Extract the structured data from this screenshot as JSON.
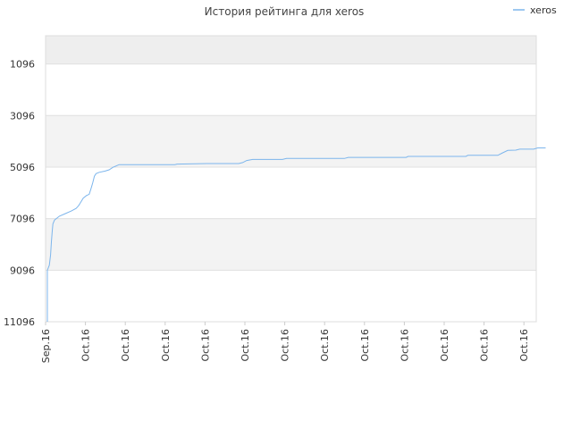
{
  "chart_data": {
    "type": "line",
    "title": "История рейтинга для xeros",
    "xlabel": "",
    "ylabel": "",
    "y_inverted": true,
    "ylim": [
      11096,
      0
    ],
    "y_ticks": [
      1096,
      3096,
      5096,
      7096,
      9096,
      11096
    ],
    "x_ticks": [
      "Sep.16",
      "Oct.16",
      "Oct.16",
      "Oct.16",
      "Oct.16",
      "Oct.16",
      "Oct.16",
      "Oct.16",
      "Oct.16",
      "Oct.16",
      "Oct.16",
      "Oct.16",
      "Oct.16"
    ],
    "grid": true,
    "legend": "top-right",
    "series": [
      {
        "name": "xeros",
        "color": "#7cb5ec",
        "points": [
          [
            0.0,
            11096
          ],
          [
            0.0,
            9096
          ],
          [
            0.05,
            8900
          ],
          [
            0.08,
            8500
          ],
          [
            0.1,
            8000
          ],
          [
            0.12,
            7600
          ],
          [
            0.14,
            7300
          ],
          [
            0.18,
            7150
          ],
          [
            0.3,
            7000
          ],
          [
            0.45,
            6900
          ],
          [
            0.6,
            6800
          ],
          [
            0.72,
            6700
          ],
          [
            0.78,
            6600
          ],
          [
            0.82,
            6500
          ],
          [
            0.9,
            6300
          ],
          [
            0.98,
            6200
          ],
          [
            1.05,
            6150
          ],
          [
            1.1,
            5900
          ],
          [
            1.14,
            5700
          ],
          [
            1.18,
            5450
          ],
          [
            1.22,
            5350
          ],
          [
            1.3,
            5300
          ],
          [
            1.45,
            5250
          ],
          [
            1.55,
            5200
          ],
          [
            1.65,
            5100
          ],
          [
            1.8,
            5000
          ],
          [
            2.0,
            5000
          ],
          [
            2.6,
            5000
          ],
          [
            3.2,
            5000
          ],
          [
            3.25,
            4980
          ],
          [
            4.0,
            4960
          ],
          [
            4.8,
            4960
          ],
          [
            4.9,
            4920
          ],
          [
            5.0,
            4840
          ],
          [
            5.15,
            4800
          ],
          [
            5.5,
            4800
          ],
          [
            5.9,
            4800
          ],
          [
            6.0,
            4760
          ],
          [
            7.0,
            4760
          ],
          [
            7.45,
            4760
          ],
          [
            7.55,
            4720
          ],
          [
            8.5,
            4720
          ],
          [
            9.0,
            4720
          ],
          [
            9.05,
            4680
          ],
          [
            10.0,
            4680
          ],
          [
            10.5,
            4680
          ],
          [
            10.55,
            4640
          ],
          [
            11.0,
            4640
          ],
          [
            11.3,
            4640
          ],
          [
            11.4,
            4560
          ],
          [
            11.55,
            4450
          ],
          [
            11.75,
            4440
          ],
          [
            11.85,
            4400
          ],
          [
            12.2,
            4400
          ],
          [
            12.3,
            4350
          ],
          [
            12.5,
            4350
          ]
        ]
      }
    ]
  }
}
